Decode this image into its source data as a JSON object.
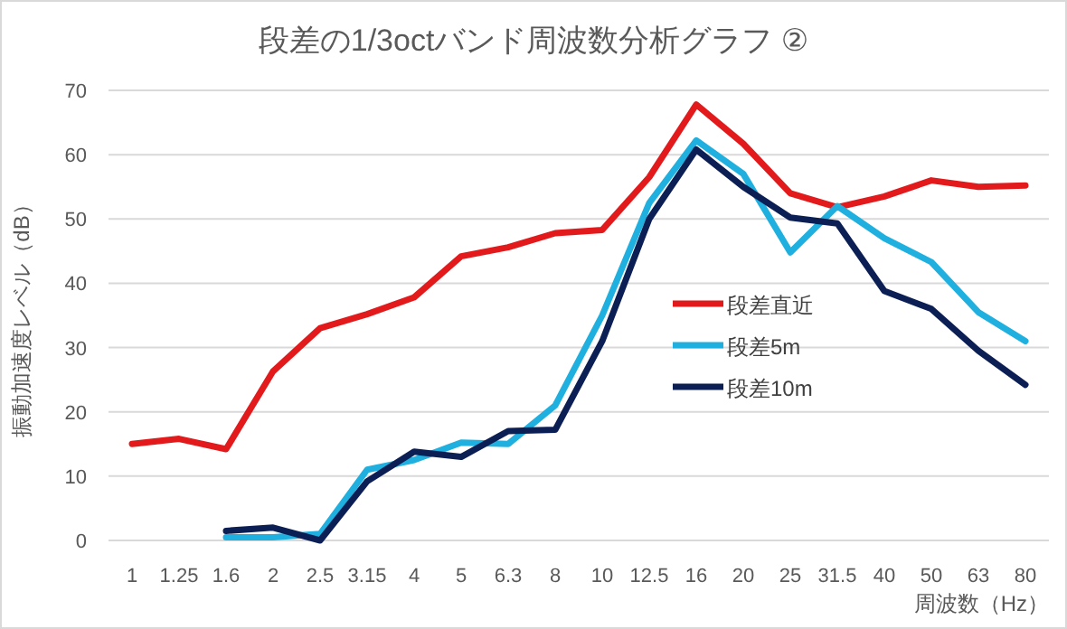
{
  "chart_data": {
    "type": "line",
    "title": "段差の1/3octバンド周波数分析グラフ ②",
    "xlabel": "周波数（Hz）",
    "ylabel": "振動加速度レベル（dB）",
    "categories": [
      "1",
      "1.25",
      "1.6",
      "2",
      "2.5",
      "3.15",
      "4",
      "5",
      "6.3",
      "8",
      "10",
      "12.5",
      "16",
      "20",
      "25",
      "31.5",
      "40",
      "50",
      "63",
      "80"
    ],
    "series": [
      {
        "name": "段差直近",
        "color": "#e31a1c",
        "values": [
          15,
          15.8,
          14.2,
          26.3,
          33,
          35.2,
          37.8,
          44.2,
          45.6,
          47.8,
          48.3,
          56.5,
          67.8,
          61.7,
          54,
          51.8,
          53.5,
          56,
          55,
          55.2
        ]
      },
      {
        "name": "段差5m",
        "color": "#1fb0e0",
        "values": [
          null,
          null,
          0.5,
          0.5,
          1,
          11,
          12.5,
          15.2,
          15,
          21,
          35,
          52.5,
          62.2,
          57,
          44.8,
          52,
          47,
          43.3,
          35.5,
          31
        ]
      },
      {
        "name": "段差10m",
        "color": "#0c1f55",
        "values": [
          null,
          null,
          1.5,
          2,
          0,
          9.2,
          13.8,
          13,
          17,
          17.2,
          31,
          50,
          60.8,
          55,
          50.2,
          49.3,
          38.8,
          36,
          29.5,
          24.2
        ]
      }
    ],
    "ylim": [
      0,
      70
    ],
    "yticks": [
      0,
      10,
      20,
      30,
      40,
      50,
      60,
      70
    ],
    "grid": "y",
    "legend": "right",
    "marker": "none",
    "line_style": "solid"
  }
}
